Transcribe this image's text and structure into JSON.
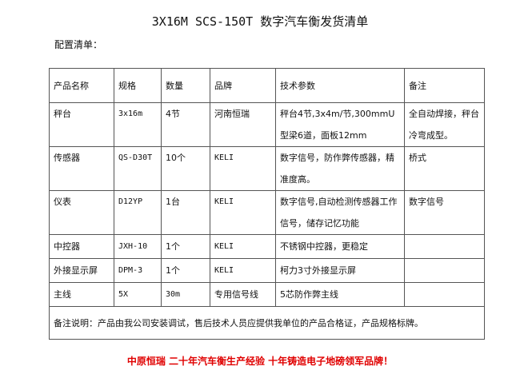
{
  "title": "3X16M SCS-150T 数字汽车衡发货清单",
  "subtitle": "配置清单：",
  "table": {
    "headers": [
      "产品名称",
      "规格",
      "数量",
      "品牌",
      "技术参数",
      "备注"
    ],
    "rows": [
      [
        "秤台",
        "3x16m",
        "4节",
        "河南恒瑞",
        "秤台4节,3x4m/节,300mmU型梁6道，面板12mm",
        "全自动焊接，秤台冷弯成型。"
      ],
      [
        "传感器",
        "QS-D30T",
        "10个",
        "KELI",
        "数字信号，防作弊传感器，精准度高。",
        "桥式"
      ],
      [
        "仪表",
        "D12YP",
        "1台",
        "KELI",
        "数字信号,自动检测传感器工作信号，储存记忆功能",
        "数字信号"
      ],
      [
        "中控器",
        "JXH-10",
        "1个",
        "KELI",
        "不锈钢中控器，更稳定",
        ""
      ],
      [
        "外接显示屏",
        "DPM-3",
        "1个",
        "KELI",
        "柯力3寸外接显示屏",
        ""
      ],
      [
        "主线",
        "5X",
        "30m",
        "专用信号线",
        "5芯防作弊主线",
        ""
      ]
    ],
    "note": "备注说明：产品由我公司安装调试，售后技术人员应提供我单位的产品合格证，产品规格标牌。"
  },
  "slogan": "中原恒瑞 二十年汽车衡生产经验 十年铸造电子地磅领军品牌！",
  "colors": {
    "slogan": "#e00000",
    "border": "#555555"
  }
}
